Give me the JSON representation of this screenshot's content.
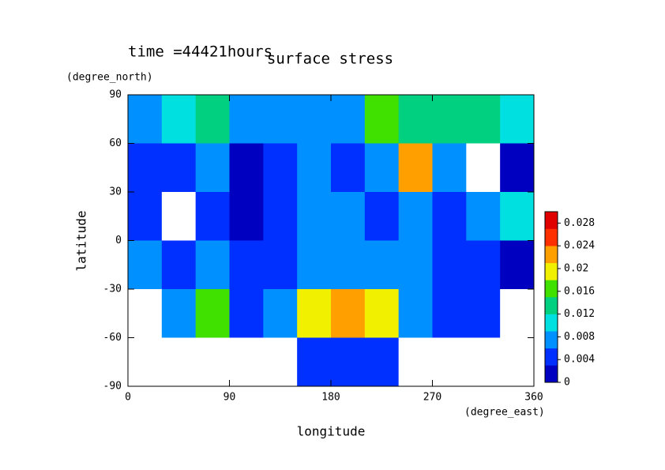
{
  "chart_data": {
    "type": "contour",
    "title": "surface stress",
    "subtitle": "time =44421hours",
    "xlabel": "longitude",
    "xunit": "(degree_east)",
    "ylabel": "latitude",
    "yunit": "(degree_north)",
    "xlim": [
      0,
      360
    ],
    "ylim": [
      -90,
      90
    ],
    "xticks": [
      0,
      90,
      180,
      270,
      360
    ],
    "yticks": [
      -90,
      -60,
      -30,
      0,
      30,
      60,
      90
    ],
    "x": [
      15,
      45,
      75,
      105,
      135,
      165,
      195,
      225,
      255,
      285,
      315,
      345
    ],
    "y": [
      75,
      45,
      15,
      -15,
      -45,
      -75
    ],
    "z": [
      [
        0.008,
        0.01,
        0.014,
        0.008,
        0.006,
        0.006,
        0.008,
        0.016,
        0.012,
        0.012,
        0.014,
        0.01
      ],
      [
        0.004,
        0.004,
        0.006,
        0.002,
        0.004,
        0.006,
        0.004,
        0.006,
        0.022,
        0.006,
        0,
        0.002
      ],
      [
        0.004,
        0,
        0.004,
        0.002,
        0.004,
        0.006,
        0.008,
        0.004,
        0.008,
        0.004,
        0.006,
        0.01
      ],
      [
        0.006,
        0.004,
        0.008,
        0.004,
        0.004,
        0.008,
        0.008,
        0.006,
        0.006,
        0.004,
        0.004,
        0.002
      ],
      [
        0,
        0.008,
        0.016,
        0.004,
        0.006,
        0.018,
        0.022,
        0.018,
        0.006,
        0.004,
        0.004,
        0
      ],
      [
        0,
        0,
        0,
        0,
        0,
        0.004,
        0.004,
        0.004,
        0,
        0,
        0,
        0
      ]
    ],
    "clim": [
      0,
      0.03
    ],
    "cticks": [
      0,
      0.004,
      0.008,
      0.012,
      0.016,
      0.02,
      0.024,
      0.028
    ],
    "zero_color": "#ffffff",
    "colorscale": [
      "#0000c0",
      "#0030ff",
      "#0090ff",
      "#00e0e0",
      "#00d080",
      "#40e000",
      "#f0f000",
      "#ffa000",
      "#ff3000",
      "#e00000"
    ]
  }
}
